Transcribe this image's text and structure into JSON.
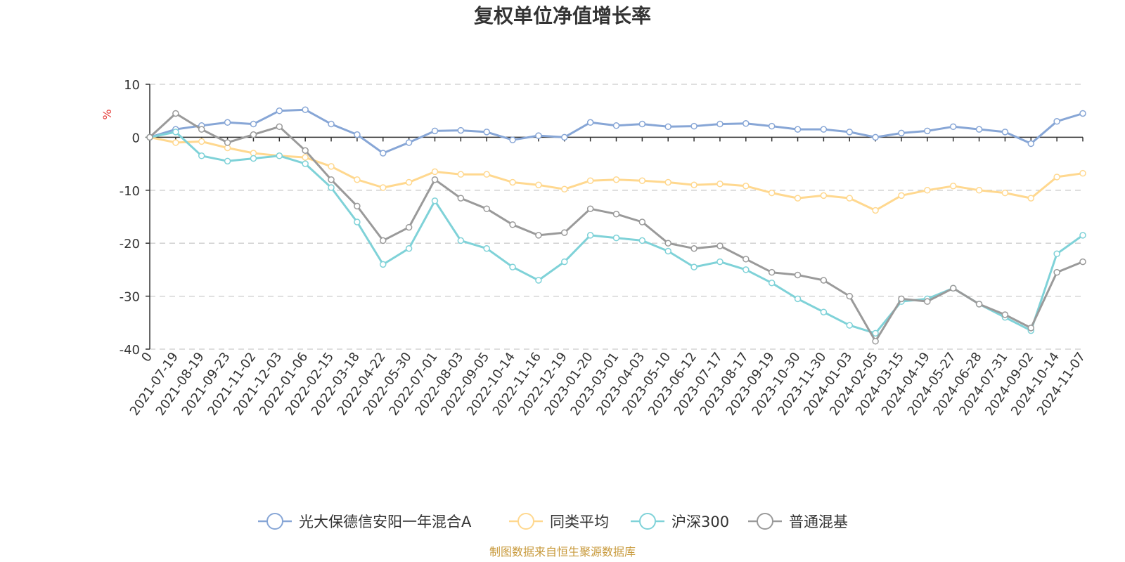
{
  "chart_data": {
    "type": "line",
    "title": "复权单位净值增长率",
    "ylabel": "%",
    "ylim": [
      -40,
      10
    ],
    "yticks": [
      10,
      0,
      -10,
      -20,
      -30,
      -40
    ],
    "grid": true,
    "legend_position": "bottom",
    "x_tick_labels": [
      "0",
      "2021-07-19",
      "2021-08-19",
      "2021-09-23",
      "2021-11-02",
      "2021-12-03",
      "2022-01-06",
      "2022-02-15",
      "2022-03-18",
      "2022-04-22",
      "2022-05-30",
      "2022-07-01",
      "2022-08-03",
      "2022-09-05",
      "2022-10-14",
      "2022-11-16",
      "2022-12-19",
      "2023-01-20",
      "2023-03-01",
      "2023-04-03",
      "2023-05-10",
      "2023-06-12",
      "2023-07-17",
      "2023-08-17",
      "2023-09-19",
      "2023-10-30",
      "2023-11-30",
      "2024-01-03",
      "2024-02-05",
      "2024-03-15",
      "2024-04-19",
      "2024-05-27",
      "2024-06-28",
      "2024-07-31",
      "2024-09-02",
      "2024-10-14",
      "2024-11-07"
    ],
    "series": [
      {
        "name": "光大保德信安阳一年混合A",
        "color": "#87a6d6",
        "values": [
          0,
          1.5,
          2.2,
          2.8,
          2.5,
          5.0,
          5.2,
          2.5,
          0.5,
          -3.0,
          -1.0,
          1.2,
          1.3,
          1.0,
          -0.5,
          0.3,
          0.0,
          2.8,
          2.2,
          2.5,
          2.0,
          2.1,
          2.5,
          2.6,
          2.1,
          1.5,
          1.5,
          1.0,
          0.0,
          0.8,
          1.2,
          2.0,
          1.5,
          1.0,
          -1.2,
          3.0,
          4.5
        ]
      },
      {
        "name": "同类平均",
        "color": "#ffd88f",
        "values": [
          0,
          -1.0,
          -0.8,
          -2.0,
          -3.0,
          -3.5,
          -3.8,
          -5.5,
          -8.0,
          -9.5,
          -8.5,
          -6.5,
          -7.0,
          -7.0,
          -8.5,
          -9.0,
          -9.8,
          -8.2,
          -8.0,
          -8.2,
          -8.5,
          -9.0,
          -8.8,
          -9.2,
          -10.5,
          -11.5,
          -11.0,
          -11.5,
          -13.8,
          -11.0,
          -10.0,
          -9.2,
          -10.0,
          -10.5,
          -11.5,
          -7.5,
          -6.8
        ]
      },
      {
        "name": "沪深300",
        "color": "#7fd2d8",
        "values": [
          0,
          1.0,
          -3.5,
          -4.5,
          -4.0,
          -3.5,
          -5.0,
          -9.5,
          -16.0,
          -24.0,
          -21.0,
          -12.0,
          -19.5,
          -21.0,
          -24.5,
          -27.0,
          -23.5,
          -18.5,
          -19.0,
          -19.5,
          -21.5,
          -24.5,
          -23.5,
          -25.0,
          -27.5,
          -30.5,
          -33.0,
          -35.5,
          -37.0,
          -31.0,
          -30.5,
          -28.5,
          -31.5,
          -34.0,
          -36.5,
          -22.0,
          -18.5
        ]
      },
      {
        "name": "普通混基",
        "color": "#9a9a9a",
        "values": [
          0,
          4.5,
          1.5,
          -1.0,
          0.5,
          2.0,
          -2.5,
          -8.0,
          -13.0,
          -19.5,
          -17.0,
          -8.0,
          -11.5,
          -13.5,
          -16.5,
          -18.5,
          -18.0,
          -13.5,
          -14.5,
          -16.0,
          -20.0,
          -21.0,
          -20.5,
          -23.0,
          -25.5,
          -26.0,
          -27.0,
          -30.0,
          -38.5,
          -30.5,
          -31.0,
          -28.5,
          -31.5,
          -33.5,
          -36.0,
          -25.5,
          -23.5
        ]
      }
    ]
  },
  "source": "制图数据来自恒生聚源数据库"
}
